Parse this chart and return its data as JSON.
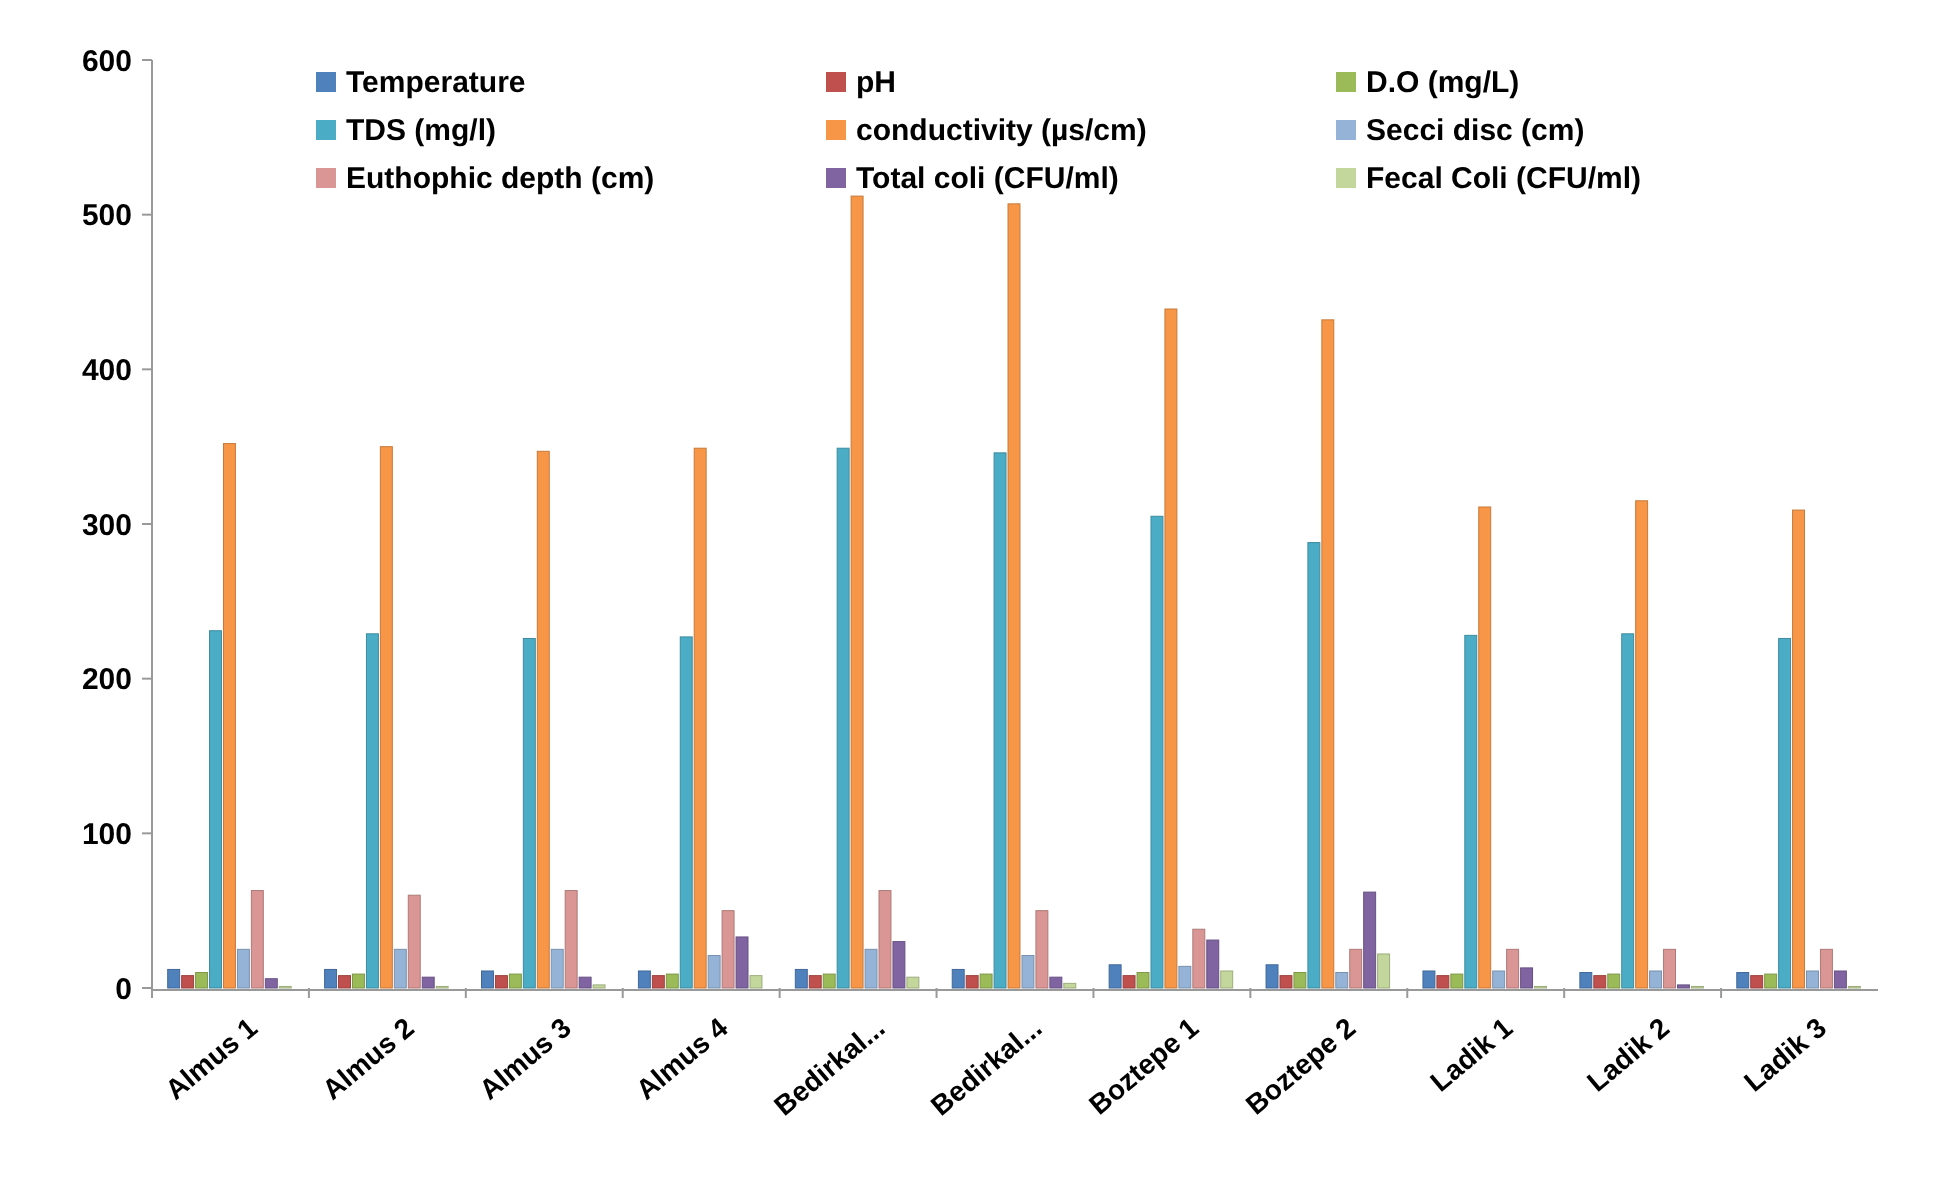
{
  "chart_data": {
    "type": "bar",
    "categories": [
      "Almus 1",
      "Almus 2",
      "Almus 3",
      "Almus 4",
      "Bedirkal...",
      "Bedirkal...",
      "Boztepe 1",
      "Boztepe 2",
      "Ladik 1",
      "Ladik 2",
      "Ladik 3"
    ],
    "series": [
      {
        "name": "Temperature",
        "color": "#4f81bd",
        "values": [
          12,
          12,
          11,
          11,
          12,
          12,
          15,
          15,
          11,
          10,
          10
        ]
      },
      {
        "name": "pH",
        "color": "#c0504d",
        "values": [
          8,
          8,
          8,
          8,
          8,
          8,
          8,
          8,
          8,
          8,
          8
        ]
      },
      {
        "name": "D.O (mg/L)",
        "color": "#9bbb59",
        "values": [
          10,
          9,
          9,
          9,
          9,
          9,
          10,
          10,
          9,
          9,
          9
        ]
      },
      {
        "name": "TDS (mg/l)",
        "color": "#4bacc6",
        "values": [
          231,
          229,
          226,
          227,
          349,
          346,
          305,
          288,
          228,
          229,
          226
        ]
      },
      {
        "name": "conductivity (µs/cm)",
        "color": "#f79646",
        "values": [
          352,
          350,
          347,
          349,
          512,
          507,
          439,
          432,
          311,
          315,
          309
        ]
      },
      {
        "name": "Secci disc (cm)",
        "color": "#95b3d7",
        "values": [
          25,
          25,
          25,
          21,
          25,
          21,
          14,
          10,
          11,
          11,
          11
        ]
      },
      {
        "name": "Euthophic depth (cm)",
        "color": "#d99694",
        "values": [
          63,
          60,
          63,
          50,
          63,
          50,
          38,
          25,
          25,
          25,
          25
        ]
      },
      {
        "name": "Total coli (CFU/ml)",
        "color": "#8064a2",
        "values": [
          6,
          7,
          7,
          33,
          30,
          7,
          31,
          62,
          13,
          2,
          11
        ]
      },
      {
        "name": "Fecal Coli (CFU/ml)",
        "color": "#c3d69b",
        "values": [
          1,
          1,
          2,
          8,
          7,
          3,
          11,
          22,
          1,
          1,
          1
        ]
      }
    ],
    "ylim": [
      0,
      600
    ],
    "yticks": [
      0,
      100,
      200,
      300,
      400,
      500,
      600
    ],
    "legend": "top",
    "grid": false
  }
}
